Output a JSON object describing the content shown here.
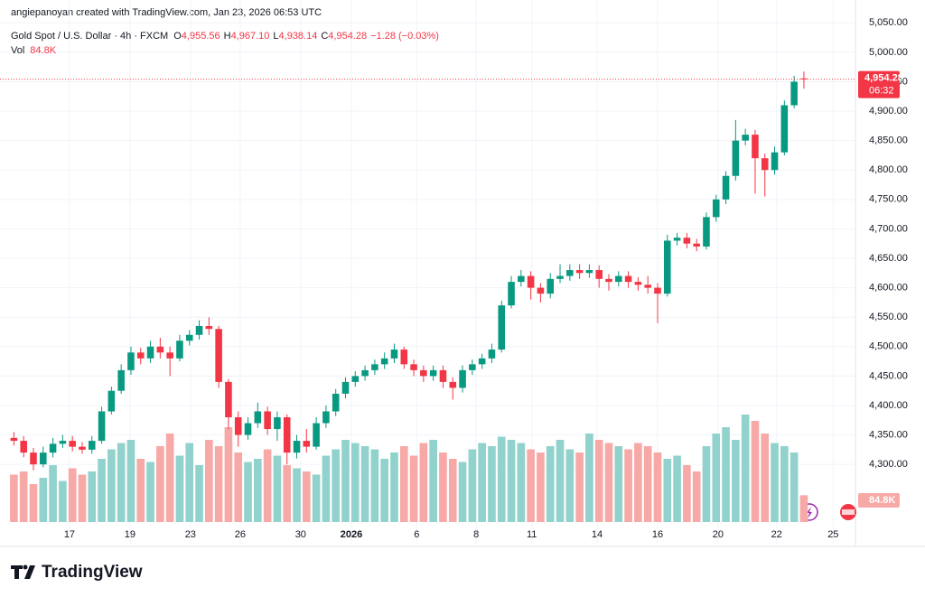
{
  "chart_data": {
    "type": "candlestick",
    "attribution": "angiepanoyan created with TradingView.com, Jan 23, 2026 06:53 UTC",
    "title": "Gold Spot / U.S. Dollar · 4h · FXCM",
    "ohlc_prefixes": [
      "O",
      "H",
      "L",
      "C"
    ],
    "ohlc_labels": [
      "4,955.56",
      "4,967.10",
      "4,938.14",
      "4,954.28"
    ],
    "change_label": "−1.28 (−0.03%)",
    "volume_title": "Vol",
    "volume_label": "84.8K",
    "last_price_label": "4,954.28",
    "countdown": "06:32",
    "logo": "TradingView",
    "up_color": "#089981",
    "down_color": "#f23645",
    "volume_up_color": "#92d2cc",
    "volume_down_color": "#f7a9a7",
    "grid": true,
    "open": [
      4345,
      4340,
      4320,
      4300,
      4320,
      4335,
      4340,
      4330,
      4325,
      4340,
      4390,
      4425,
      4460,
      4490,
      4480,
      4500,
      4490,
      4480,
      4510,
      4520,
      4535,
      4530,
      4440,
      4380,
      4350,
      4370,
      4390,
      4360,
      4380,
      4320,
      4340,
      4330,
      4370,
      4390,
      4420,
      4440,
      4450,
      4460,
      4470,
      4480,
      4495,
      4470,
      4460,
      4450,
      4460,
      4440,
      4430,
      4460,
      4470,
      4480,
      4495,
      4570,
      4610,
      4620,
      4600,
      4590,
      4615,
      4620,
      4630,
      4625,
      4630,
      4615,
      4610,
      4620,
      4610,
      4605,
      4600,
      4590,
      4680,
      4685,
      4675,
      4670,
      4720,
      4750,
      4790,
      4850,
      4860,
      4820,
      4800,
      4830,
      4910,
      4955.56
    ],
    "high": [
      4355,
      4348,
      4328,
      4330,
      4345,
      4350,
      4348,
      4338,
      4348,
      4398,
      4432,
      4470,
      4500,
      4498,
      4510,
      4515,
      4500,
      4520,
      4528,
      4545,
      4550,
      4535,
      4445,
      4390,
      4380,
      4405,
      4398,
      4390,
      4385,
      4350,
      4360,
      4380,
      4400,
      4428,
      4448,
      4458,
      4468,
      4478,
      4490,
      4505,
      4500,
      4478,
      4468,
      4468,
      4468,
      4448,
      4468,
      4478,
      4488,
      4505,
      4578,
      4620,
      4630,
      4628,
      4608,
      4625,
      4640,
      4640,
      4640,
      4640,
      4638,
      4623,
      4628,
      4628,
      4618,
      4620,
      4608,
      4690,
      4693,
      4693,
      4683,
      4728,
      4758,
      4798,
      4885,
      4870,
      4868,
      4828,
      4840,
      4918,
      4960,
      4967.1
    ],
    "low": [
      4332,
      4312,
      4290,
      4295,
      4312,
      4328,
      4322,
      4318,
      4318,
      4335,
      4385,
      4420,
      4452,
      4470,
      4472,
      4480,
      4450,
      4475,
      4502,
      4512,
      4520,
      4430,
      4360,
      4330,
      4342,
      4362,
      4350,
      4340,
      4300,
      4310,
      4320,
      4325,
      4362,
      4382,
      4412,
      4432,
      4442,
      4452,
      4462,
      4472,
      4462,
      4450,
      4440,
      4442,
      4430,
      4410,
      4422,
      4452,
      4462,
      4472,
      4490,
      4565,
      4602,
      4580,
      4575,
      4582,
      4608,
      4612,
      4615,
      4617,
      4600,
      4595,
      4602,
      4600,
      4595,
      4590,
      4540,
      4585,
      4672,
      4667,
      4662,
      4665,
      4712,
      4742,
      4782,
      4842,
      4760,
      4755,
      4792,
      4825,
      4905,
      4938.14
    ],
    "close": [
      4340,
      4320,
      4300,
      4320,
      4335,
      4340,
      4330,
      4325,
      4340,
      4390,
      4425,
      4460,
      4490,
      4480,
      4500,
      4490,
      4480,
      4510,
      4520,
      4535,
      4530,
      4440,
      4380,
      4350,
      4370,
      4390,
      4360,
      4380,
      4320,
      4340,
      4330,
      4370,
      4390,
      4420,
      4440,
      4450,
      4460,
      4470,
      4480,
      4495,
      4470,
      4460,
      4450,
      4460,
      4440,
      4430,
      4460,
      4470,
      4480,
      4495,
      4570,
      4610,
      4620,
      4600,
      4590,
      4615,
      4620,
      4630,
      4625,
      4630,
      4615,
      4610,
      4620,
      4610,
      4605,
      4600,
      4590,
      4680,
      4685,
      4675,
      4670,
      4720,
      4750,
      4790,
      4850,
      4860,
      4820,
      4800,
      4830,
      4910,
      4950,
      4954.28
    ],
    "volume": [
      150000,
      160000,
      120000,
      140000,
      180000,
      130000,
      170000,
      150000,
      160000,
      200000,
      230000,
      250000,
      260000,
      200000,
      190000,
      240000,
      280000,
      210000,
      250000,
      180000,
      260000,
      240000,
      300000,
      220000,
      190000,
      200000,
      230000,
      210000,
      180000,
      170000,
      160000,
      150000,
      210000,
      230000,
      260000,
      250000,
      240000,
      230000,
      200000,
      220000,
      240000,
      210000,
      250000,
      260000,
      220000,
      200000,
      190000,
      230000,
      250000,
      240000,
      270000,
      260000,
      250000,
      230000,
      220000,
      240000,
      260000,
      230000,
      220000,
      280000,
      260000,
      250000,
      240000,
      230000,
      250000,
      240000,
      220000,
      200000,
      210000,
      180000,
      160000,
      240000,
      280000,
      300000,
      260000,
      340000,
      320000,
      280000,
      250000,
      240000,
      220000,
      84800
    ],
    "volume_lim": [
      0,
      400000
    ],
    "xlim": [
      -0.5,
      86.1
    ],
    "xticks": [
      {
        "value": 5.7,
        "label": "17"
      },
      {
        "value": 11.9,
        "label": "19"
      },
      {
        "value": 18.1,
        "label": "23"
      },
      {
        "value": 23.2,
        "label": "26"
      },
      {
        "value": 29.4,
        "label": "30"
      },
      {
        "value": 34.6,
        "label": "2026"
      },
      {
        "value": 41.3,
        "label": "6"
      },
      {
        "value": 47.4,
        "label": "8"
      },
      {
        "value": 53.1,
        "label": "11"
      },
      {
        "value": 59.8,
        "label": "14"
      },
      {
        "value": 66.0,
        "label": "16"
      },
      {
        "value": 72.2,
        "label": "20"
      },
      {
        "value": 78.2,
        "label": "22"
      },
      {
        "value": 84.0,
        "label": "25"
      }
    ],
    "ylim": [
      4199,
      5055
    ],
    "yticks": [
      {
        "value": 4300,
        "label": "4,300.00"
      },
      {
        "value": 4350,
        "label": "4,350.00"
      },
      {
        "value": 4400,
        "label": "4,400.00"
      },
      {
        "value": 4450,
        "label": "4,450.00"
      },
      {
        "value": 4500,
        "label": "4,500.00"
      },
      {
        "value": 4550,
        "label": "4,550.00"
      },
      {
        "value": 4600,
        "label": "4,600.00"
      },
      {
        "value": 4650,
        "label": "4,650.00"
      },
      {
        "value": 4700,
        "label": "4,700.00"
      },
      {
        "value": 4750,
        "label": "4,750.00"
      },
      {
        "value": 4800,
        "label": "4,800.00"
      },
      {
        "value": 4850,
        "label": "4,850.00"
      },
      {
        "value": 4900,
        "label": "4,900.00"
      },
      {
        "value": 4950,
        "label": "4,950.00"
      },
      {
        "value": 5000,
        "label": "5,000.00"
      },
      {
        "value": 5050,
        "label": "5,050.00"
      }
    ]
  }
}
